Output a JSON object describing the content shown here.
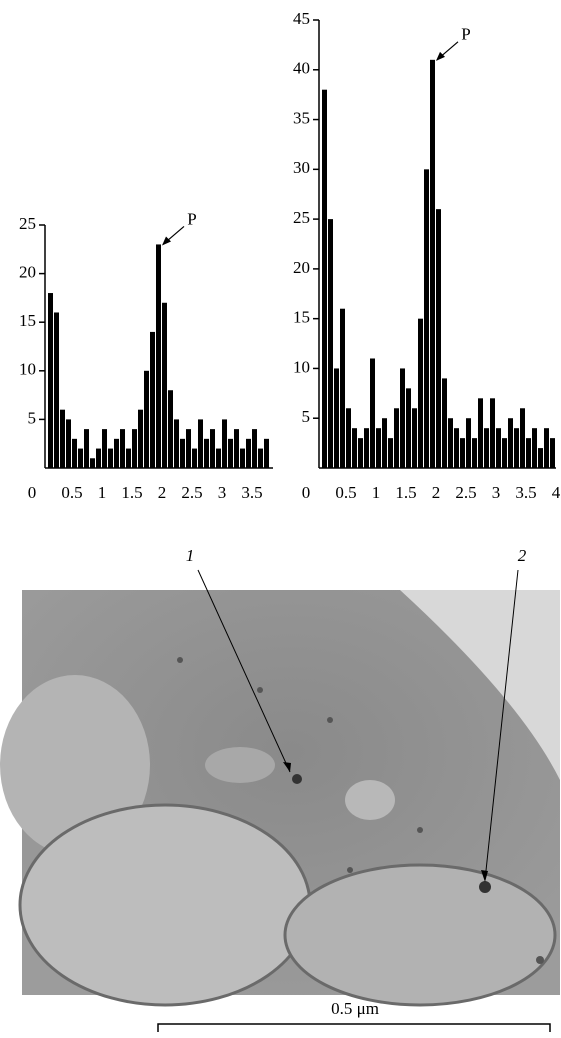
{
  "chart_data": [
    {
      "type": "histogram",
      "annotation": "P",
      "color": "#000000",
      "bins": [
        0.1,
        0.2,
        0.3,
        0.4,
        0.5,
        0.6,
        0.7,
        0.8,
        0.9,
        1.0,
        1.1,
        1.2,
        1.3,
        1.4,
        1.5,
        1.6,
        1.7,
        1.8,
        1.9,
        2.0,
        2.1,
        2.2,
        2.3,
        2.4,
        2.5,
        2.6,
        2.7,
        2.8,
        2.9,
        3.0,
        3.1,
        3.2,
        3.3,
        3.4,
        3.5,
        3.6,
        3.7,
        3.8
      ],
      "values": [
        18,
        16,
        6,
        5,
        3,
        2,
        4,
        1,
        2,
        4,
        2,
        3,
        4,
        2,
        4,
        6,
        10,
        14,
        23,
        17,
        8,
        5,
        3,
        4,
        2,
        5,
        3,
        4,
        2,
        5,
        3,
        4,
        2,
        3,
        4,
        2,
        3
      ],
      "xlim": [
        0,
        3.85
      ],
      "ylim": [
        0,
        25
      ],
      "xticks": [
        0,
        0.5,
        1,
        1.5,
        2,
        2.5,
        3,
        3.5
      ],
      "yticks": [
        5,
        10,
        15,
        20,
        25
      ]
    },
    {
      "type": "histogram",
      "annotation": "P",
      "color": "#000000",
      "bins": [
        0.1,
        0.2,
        0.3,
        0.4,
        0.5,
        0.6,
        0.7,
        0.8,
        0.9,
        1.0,
        1.1,
        1.2,
        1.3,
        1.4,
        1.5,
        1.6,
        1.7,
        1.8,
        1.9,
        2.0,
        2.1,
        2.2,
        2.3,
        2.4,
        2.5,
        2.6,
        2.7,
        2.8,
        2.9,
        3.0,
        3.1,
        3.2,
        3.3,
        3.4,
        3.5,
        3.6,
        3.7,
        3.8,
        3.9,
        4.0
      ],
      "values": [
        38,
        25,
        10,
        16,
        6,
        4,
        3,
        4,
        11,
        4,
        5,
        3,
        6,
        10,
        8,
        6,
        15,
        30,
        41,
        26,
        9,
        5,
        4,
        3,
        5,
        3,
        7,
        4,
        7,
        4,
        3,
        5,
        4,
        6,
        3,
        4,
        2,
        4,
        3
      ],
      "xlim": [
        0,
        4
      ],
      "ylim": [
        0,
        45
      ],
      "xticks": [
        0,
        0.5,
        1,
        1.5,
        2,
        2.5,
        3,
        3.5,
        4
      ],
      "yticks": [
        5,
        10,
        15,
        20,
        25,
        30,
        35,
        40,
        45
      ]
    }
  ],
  "micrograph": {
    "labels": [
      "1",
      "2"
    ],
    "scale_bar": "0.5 μm"
  }
}
